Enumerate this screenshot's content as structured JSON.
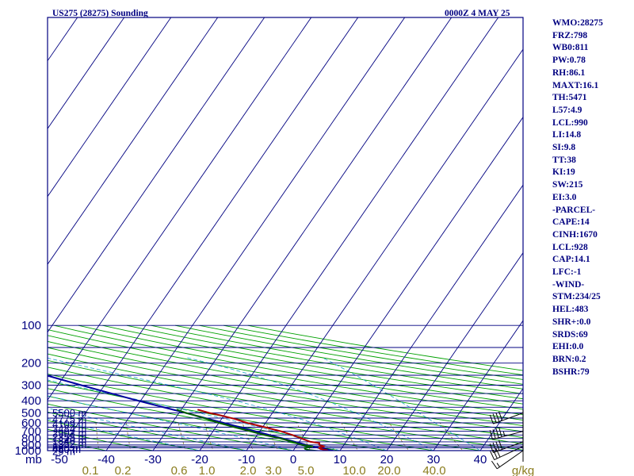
{
  "header": {
    "station": "US275 (28275) Sounding",
    "time": "0000Z  4 MAY 25"
  },
  "indices": [
    "WMO:28275",
    "FRZ:798",
    "WB0:811",
    "PW:0.78",
    "RH:86.1",
    "MAXT:16.1",
    "TH:5471",
    "L57:4.9",
    "LCL:990",
    "LI:14.8",
    "SI:9.8",
    "TT:38",
    "KI:19",
    "SW:215",
    "EI:3.0",
    "-PARCEL-",
    "CAPE:14",
    "CINH:1670",
    "LCL:928",
    "CAP:14.1",
    "LFC:-1",
    "-WIND-",
    "STM:234/25",
    "HEL:483",
    "SHR+:0.0",
    "SRDS:69",
    "EHI:0.0",
    "BRN:0.2",
    "BSHR:79"
  ],
  "colors": {
    "frame": "#000080",
    "isobar": "#000080",
    "isotherm": "#000080",
    "dry_adiabat": "#00a000",
    "moist_adiabat": "#33aacc",
    "mixing_ratio": "#8b7d1e",
    "temperature": "#b00000",
    "dewpoint": "#006000",
    "parcel": "#0000a0",
    "wind": "#000000"
  },
  "chart_data": {
    "type": "skew-t",
    "pressure_unit": "mb",
    "pressure_ticks": [
      100,
      200,
      300,
      400,
      500,
      600,
      700,
      800,
      900,
      1000
    ],
    "isobars": [
      100,
      150,
      200,
      250,
      300,
      350,
      400,
      450,
      500,
      550,
      600,
      650,
      700,
      750,
      800,
      850,
      900,
      925,
      950,
      1000
    ],
    "temperature_ticks": [
      -50,
      -40,
      -30,
      -20,
      -10,
      0,
      10,
      20,
      30,
      40
    ],
    "mixing_ratio_labels": [
      "0.1",
      "0.2",
      "0.6",
      "1.0",
      "2.0",
      "3.0",
      "5.0",
      "10.0",
      "20.0",
      "40.0"
    ],
    "mixing_ratio_unit": "g/kg",
    "height_labels": [
      {
        "p": 497,
        "text": "5500 m"
      },
      {
        "p": 557,
        "text": "4775 m"
      },
      {
        "p": 608,
        "text": "4109 m"
      },
      {
        "p": 664,
        "text": "3484 m"
      },
      {
        "p": 718,
        "text": "2903 m"
      },
      {
        "p": 773,
        "text": "2355 m"
      },
      {
        "p": 829,
        "text": "1840 m"
      },
      {
        "p": 880,
        "text": "1352 m"
      },
      {
        "p": 940,
        "text": "890 m"
      },
      {
        "p": 970,
        "text": "450 m"
      },
      {
        "p": 1004,
        "text": "29 m"
      }
    ],
    "temperature_profile": [
      {
        "p": 1009,
        "t": 7.6
      },
      {
        "p": 990,
        "t": 7.1
      },
      {
        "p": 970,
        "t": 5.6
      },
      {
        "p": 950,
        "t": 5.1
      },
      {
        "p": 925,
        "t": 6.0
      },
      {
        "p": 900,
        "t": 4.7
      },
      {
        "p": 870,
        "t": 4.5
      },
      {
        "p": 850,
        "t": 2.4
      },
      {
        "p": 800,
        "t": 0.0
      },
      {
        "p": 750,
        "t": -2.5
      },
      {
        "p": 700,
        "t": -5.5
      },
      {
        "p": 650,
        "t": -9.5
      },
      {
        "p": 600,
        "t": -14.0
      },
      {
        "p": 560,
        "t": -17.0
      },
      {
        "p": 520,
        "t": -21.0
      },
      {
        "p": 500,
        "t": -23.5
      },
      {
        "p": 470,
        "t": -26.5
      }
    ],
    "dewpoint_profile": [
      {
        "p": 1009,
        "t": 5.6
      },
      {
        "p": 990,
        "t": 3.3
      },
      {
        "p": 970,
        "t": 2.3
      },
      {
        "p": 950,
        "t": 2.0
      },
      {
        "p": 925,
        "t": 3.5
      },
      {
        "p": 900,
        "t": 1.0
      },
      {
        "p": 850,
        "t": -1.5
      },
      {
        "p": 800,
        "t": -4.5
      },
      {
        "p": 750,
        "t": -8.5
      },
      {
        "p": 700,
        "t": -12.0
      },
      {
        "p": 650,
        "t": -16.0
      },
      {
        "p": 600,
        "t": -20.0
      },
      {
        "p": 560,
        "t": -23.0
      },
      {
        "p": 520,
        "t": -26.5
      },
      {
        "p": 500,
        "t": -28.5
      },
      {
        "p": 470,
        "t": -31.0
      }
    ],
    "parcel_profile": [
      {
        "p": 1009,
        "t": 9.0
      },
      {
        "p": 950,
        "t": 5.0
      },
      {
        "p": 900,
        "t": 2.0
      },
      {
        "p": 800,
        "t": -4.0
      },
      {
        "p": 700,
        "t": -11.0
      },
      {
        "p": 600,
        "t": -19.0
      },
      {
        "p": 500,
        "t": -28.5
      },
      {
        "p": 400,
        "t": -40.5
      },
      {
        "p": 300,
        "t": -55.0
      },
      {
        "p": 250,
        "t": -64.0
      },
      {
        "p": 200,
        "t": -74.0
      },
      {
        "p": 150,
        "t": -87.0
      },
      {
        "p": 125,
        "t": -95.0
      }
    ],
    "wind_barbs": [
      {
        "p": 1000,
        "dir": 235,
        "spd": 15
      },
      {
        "p": 925,
        "dir": 245,
        "spd": 30
      },
      {
        "p": 850,
        "dir": 250,
        "spd": 40
      },
      {
        "p": 700,
        "dir": 255,
        "spd": 45
      },
      {
        "p": 500,
        "dir": 250,
        "spd": 40
      }
    ]
  }
}
